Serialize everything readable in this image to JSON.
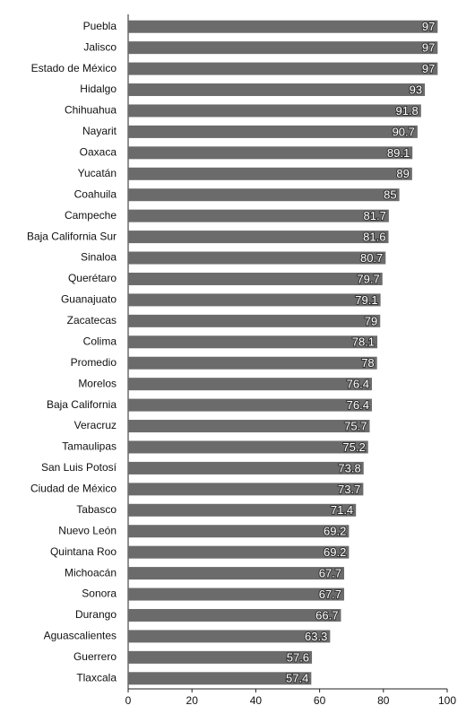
{
  "chart_data": {
    "type": "bar",
    "orientation": "horizontal",
    "categories": [
      "Puebla",
      "Jalisco",
      "Estado de México",
      "Hidalgo",
      "Chihuahua",
      "Nayarit",
      "Oaxaca",
      "Yucatán",
      "Coahuila",
      "Campeche",
      "Baja California Sur",
      "Sinaloa",
      "Querétaro",
      "Guanajuato",
      "Zacatecas",
      "Colima",
      "Promedio",
      "Morelos",
      "Baja California",
      "Veracruz",
      "Tamaulipas",
      "San Luis Potosí",
      "Ciudad de México",
      "Tabasco",
      "Nuevo León",
      "Quintana Roo",
      "Michoacán",
      "Sonora",
      "Durango",
      "Aguascalientes",
      "Guerrero",
      "Tlaxcala"
    ],
    "values": [
      97,
      97,
      97,
      93,
      91.8,
      90.7,
      89.1,
      89,
      85,
      81.7,
      81.6,
      80.7,
      79.7,
      79.1,
      79,
      78.1,
      78,
      76.4,
      76.4,
      75.7,
      75.2,
      73.8,
      73.7,
      71.4,
      69.2,
      69.2,
      67.7,
      67.7,
      66.7,
      63.3,
      57.6,
      57.4
    ],
    "color": "#6b6b6b",
    "xlim": [
      0,
      100
    ],
    "xticks": [
      0,
      20,
      40,
      60,
      80,
      100
    ],
    "grid": false
  }
}
